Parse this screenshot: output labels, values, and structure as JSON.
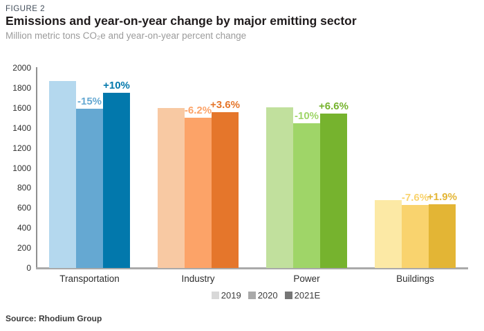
{
  "figure": {
    "kicker": "FIGURE 2",
    "title": "Emissions and year-on-year change by major emitting sector",
    "subtitle": "Million metric tons CO₂e and year-on-year percent change",
    "source": "Source: Rhodium Group"
  },
  "chart_data": {
    "type": "bar",
    "title": "Emissions and year-on-year change by major emitting sector",
    "subtitle": "Million metric tons CO₂e and year-on-year percent change",
    "xlabel": "",
    "ylabel": "Million metric tons CO₂e",
    "categories": [
      "Transportation",
      "Industry",
      "Power",
      "Buildings"
    ],
    "series": [
      {
        "name": "2019",
        "values": [
          1870,
          1600,
          1605,
          680
        ]
      },
      {
        "name": "2020",
        "values": [
          1590,
          1501,
          1445,
          628
        ],
        "change_labels": [
          "-15%",
          "-6.2%",
          "-10%",
          "-7.6%"
        ]
      },
      {
        "name": "2021E",
        "values": [
          1749,
          1555,
          1540,
          640
        ],
        "change_labels": [
          "+10%",
          "+3.6%",
          "+6.6%",
          "+1.9%"
        ]
      }
    ],
    "category_colors": [
      [
        "#b4d8ee",
        "#65a8d2",
        "#0278ac"
      ],
      [
        "#f8c9a3",
        "#fca368",
        "#e5762b"
      ],
      [
        "#c1e09d",
        "#9fd568",
        "#76b32e"
      ],
      [
        "#fce9a5",
        "#f9d36e",
        "#e3b535"
      ]
    ],
    "ylim": [
      0,
      2000
    ],
    "ytick_step": 200,
    "grid": false,
    "legend": {
      "position": "bottom",
      "entries": [
        {
          "label": "2019",
          "color": "#d8d8d8"
        },
        {
          "label": "2020",
          "color": "#a9a9a9"
        },
        {
          "label": "2021E",
          "color": "#767676"
        }
      ]
    }
  }
}
